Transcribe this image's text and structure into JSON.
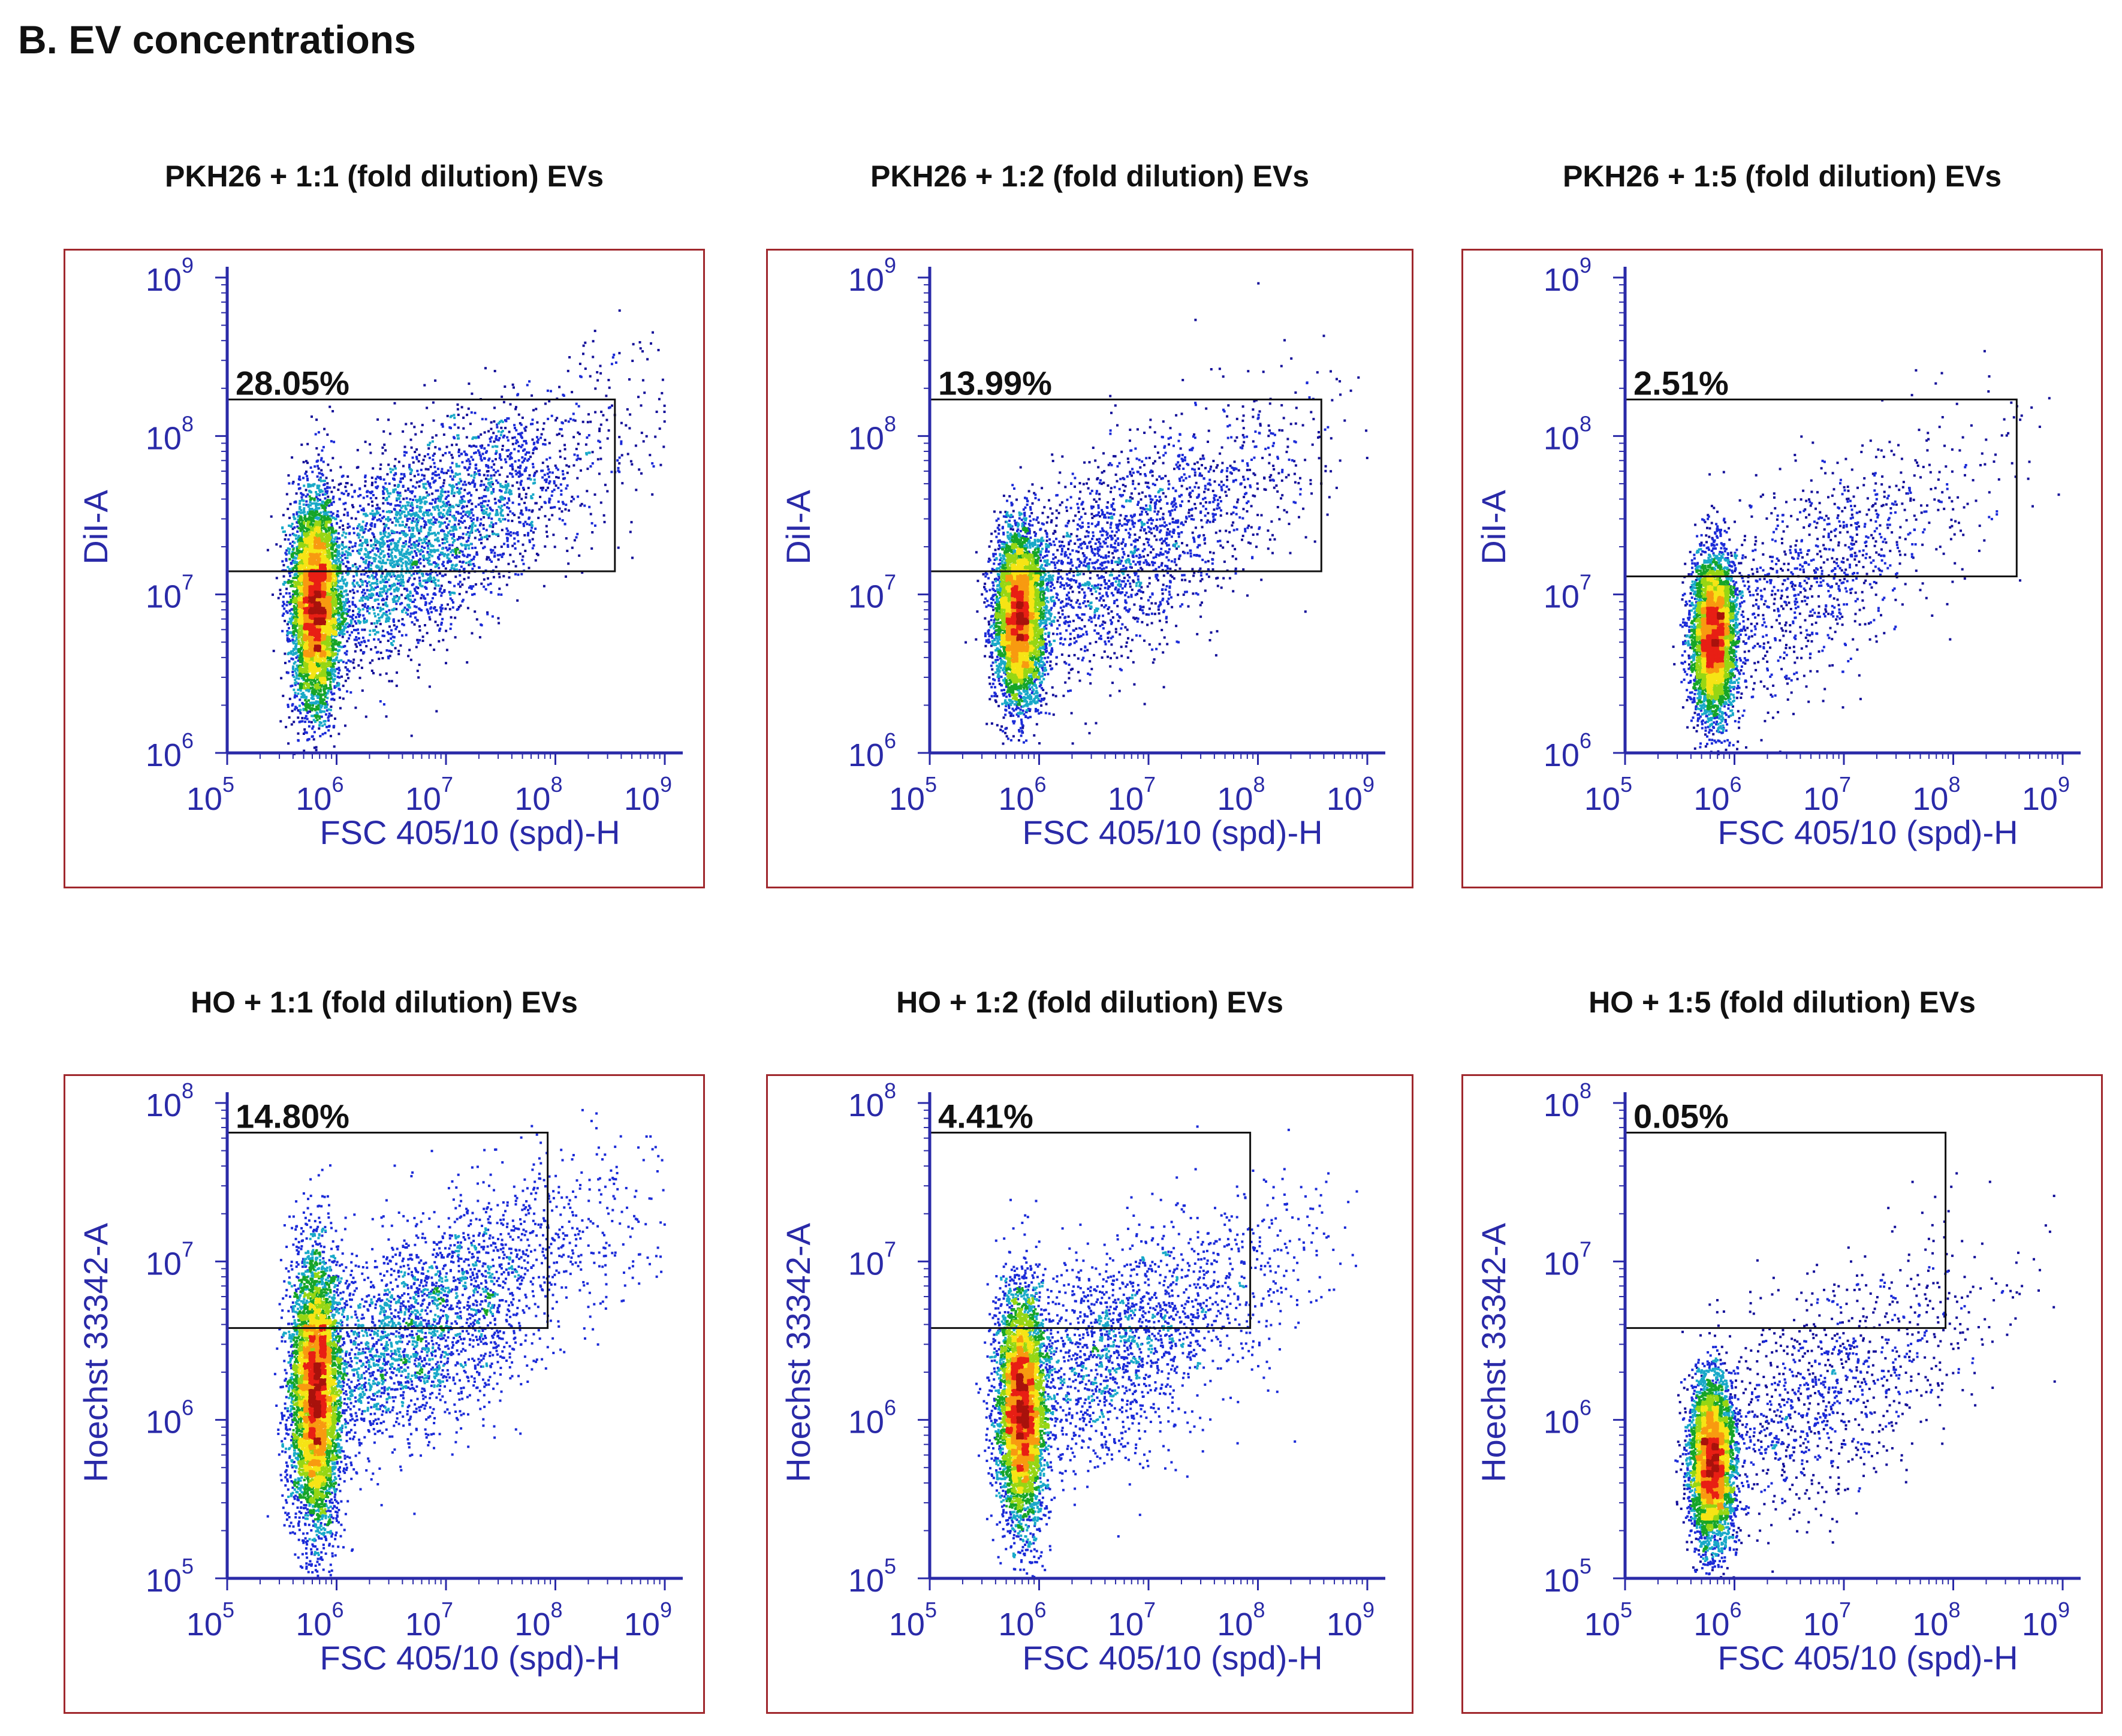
{
  "figure_title": "B. EV concentrations",
  "chart_data": [
    {
      "type": "scatter",
      "title": "PKH26 + 1:1 (fold dilution) EVs",
      "xlabel": "FSC 405/10 (spd)-H",
      "ylabel": "DiI-A",
      "x_scale": "log",
      "xlim": [
        100000,
        1000000000
      ],
      "x_ticks": [
        {
          "base": "10",
          "exp": "5"
        },
        {
          "base": "10",
          "exp": "6"
        },
        {
          "base": "10",
          "exp": "7"
        },
        {
          "base": "10",
          "exp": "8"
        },
        {
          "base": "10",
          "exp": "9"
        }
      ],
      "y_scale": "log",
      "ylim": [
        1000000,
        1000000000
      ],
      "y_ticks": [
        {
          "base": "10",
          "exp": "6"
        },
        {
          "base": "10",
          "exp": "7"
        },
        {
          "base": "10",
          "exp": "8"
        },
        {
          "base": "10",
          "exp": "9"
        }
      ],
      "gate": {
        "label": "28.05%",
        "x_range": [
          80000,
          350000000
        ],
        "y_range": [
          14000000,
          170000000
        ]
      },
      "population": {
        "center_x": 630000,
        "center_y": 9000000,
        "sigma_log_x": 0.11,
        "sigma_log_y": 0.33,
        "n_points": 9000,
        "tail_fraction": 0.34
      }
    },
    {
      "type": "scatter",
      "title": "PKH26 + 1:2 (fold dilution) EVs",
      "xlabel": "FSC 405/10 (spd)-H",
      "ylabel": "DiI-A",
      "x_scale": "log",
      "xlim": [
        100000,
        1000000000
      ],
      "x_ticks": [
        {
          "base": "10",
          "exp": "5"
        },
        {
          "base": "10",
          "exp": "6"
        },
        {
          "base": "10",
          "exp": "7"
        },
        {
          "base": "10",
          "exp": "8"
        },
        {
          "base": "10",
          "exp": "9"
        }
      ],
      "y_scale": "log",
      "ylim": [
        1000000,
        1000000000
      ],
      "y_ticks": [
        {
          "base": "10",
          "exp": "6"
        },
        {
          "base": "10",
          "exp": "7"
        },
        {
          "base": "10",
          "exp": "8"
        },
        {
          "base": "10",
          "exp": "9"
        }
      ],
      "gate": {
        "label": "13.99%",
        "x_range": [
          80000,
          380000000
        ],
        "y_range": [
          14000000,
          170000000
        ]
      },
      "population": {
        "center_x": 650000,
        "center_y": 7500000,
        "sigma_log_x": 0.11,
        "sigma_log_y": 0.27,
        "n_points": 7500,
        "tail_fraction": 0.26
      }
    },
    {
      "type": "scatter",
      "title": "PKH26 + 1:5 (fold dilution) EVs",
      "xlabel": "FSC 405/10 (spd)-H",
      "ylabel": "DiI-A",
      "x_scale": "log",
      "xlim": [
        100000,
        1000000000
      ],
      "x_ticks": [
        {
          "base": "10",
          "exp": "5"
        },
        {
          "base": "10",
          "exp": "6"
        },
        {
          "base": "10",
          "exp": "7"
        },
        {
          "base": "10",
          "exp": "8"
        },
        {
          "base": "10",
          "exp": "9"
        }
      ],
      "y_scale": "log",
      "ylim": [
        1000000,
        1000000000
      ],
      "y_ticks": [
        {
          "base": "10",
          "exp": "6"
        },
        {
          "base": "10",
          "exp": "7"
        },
        {
          "base": "10",
          "exp": "8"
        },
        {
          "base": "10",
          "exp": "9"
        }
      ],
      "gate": {
        "label": "2.51%",
        "x_range": [
          80000,
          380000000
        ],
        "y_range": [
          13000000,
          170000000
        ]
      },
      "population": {
        "center_x": 630000,
        "center_y": 5500000,
        "sigma_log_x": 0.1,
        "sigma_log_y": 0.25,
        "n_points": 6000,
        "tail_fraction": 0.16
      }
    },
    {
      "type": "scatter",
      "title": "HO + 1:1 (fold dilution) EVs",
      "xlabel": "FSC 405/10 (spd)-H",
      "ylabel": "Hoechst 33342-A",
      "x_scale": "log",
      "xlim": [
        100000,
        1000000000
      ],
      "x_ticks": [
        {
          "base": "10",
          "exp": "5"
        },
        {
          "base": "10",
          "exp": "6"
        },
        {
          "base": "10",
          "exp": "7"
        },
        {
          "base": "10",
          "exp": "8"
        },
        {
          "base": "10",
          "exp": "9"
        }
      ],
      "y_scale": "log",
      "ylim": [
        100000,
        100000000
      ],
      "y_ticks": [
        {
          "base": "10",
          "exp": "5"
        },
        {
          "base": "10",
          "exp": "6"
        },
        {
          "base": "10",
          "exp": "7"
        },
        {
          "base": "10",
          "exp": "8"
        }
      ],
      "gate": {
        "label": "14.80%",
        "x_range": [
          80000,
          85000000
        ],
        "y_range": [
          3800000,
          65000000
        ]
      },
      "population": {
        "center_x": 630000,
        "center_y": 1500000,
        "sigma_log_x": 0.11,
        "sigma_log_y": 0.42,
        "n_points": 9000,
        "tail_fraction": 0.3
      }
    },
    {
      "type": "scatter",
      "title": "HO +  1:2 (fold dilution) EVs",
      "xlabel": "FSC 405/10 (spd)-H",
      "ylabel": "Hoechst 33342-A",
      "x_scale": "log",
      "xlim": [
        100000,
        1000000000
      ],
      "x_ticks": [
        {
          "base": "10",
          "exp": "5"
        },
        {
          "base": "10",
          "exp": "6"
        },
        {
          "base": "10",
          "exp": "7"
        },
        {
          "base": "10",
          "exp": "8"
        },
        {
          "base": "10",
          "exp": "9"
        }
      ],
      "y_scale": "log",
      "ylim": [
        100000,
        100000000
      ],
      "y_ticks": [
        {
          "base": "10",
          "exp": "5"
        },
        {
          "base": "10",
          "exp": "6"
        },
        {
          "base": "10",
          "exp": "7"
        },
        {
          "base": "10",
          "exp": "8"
        }
      ],
      "gate": {
        "label": "4.41%",
        "x_range": [
          80000,
          85000000
        ],
        "y_range": [
          3800000,
          65000000
        ]
      },
      "population": {
        "center_x": 680000,
        "center_y": 1200000,
        "sigma_log_x": 0.11,
        "sigma_log_y": 0.36,
        "n_points": 7500,
        "tail_fraction": 0.24
      }
    },
    {
      "type": "scatter",
      "title": "HO +  1:5 (fold dilution) EVs",
      "xlabel": "FSC 405/10 (spd)-H",
      "ylabel": "Hoechst 33342-A",
      "x_scale": "log",
      "xlim": [
        100000,
        1000000000
      ],
      "x_ticks": [
        {
          "base": "10",
          "exp": "5"
        },
        {
          "base": "10",
          "exp": "6"
        },
        {
          "base": "10",
          "exp": "7"
        },
        {
          "base": "10",
          "exp": "8"
        },
        {
          "base": "10",
          "exp": "9"
        }
      ],
      "y_scale": "log",
      "ylim": [
        100000,
        100000000
      ],
      "y_ticks": [
        {
          "base": "10",
          "exp": "5"
        },
        {
          "base": "10",
          "exp": "6"
        },
        {
          "base": "10",
          "exp": "7"
        },
        {
          "base": "10",
          "exp": "8"
        }
      ],
      "gate": {
        "label": "0.05%",
        "x_range": [
          80000,
          85000000
        ],
        "y_range": [
          3800000,
          65000000
        ]
      },
      "population": {
        "center_x": 610000,
        "center_y": 560000,
        "sigma_log_x": 0.1,
        "sigma_log_y": 0.26,
        "n_points": 6000,
        "tail_fraction": 0.17
      }
    }
  ],
  "colors": {
    "density_ramp": [
      "#14109a",
      "#1b2bd8",
      "#19a9c8",
      "#16a528",
      "#96d614",
      "#f6e415",
      "#f89a10",
      "#e81f14",
      "#a8120c"
    ],
    "axis": "#2a2aa8",
    "panel_border": "#a0282d",
    "gate": "#111111"
  }
}
